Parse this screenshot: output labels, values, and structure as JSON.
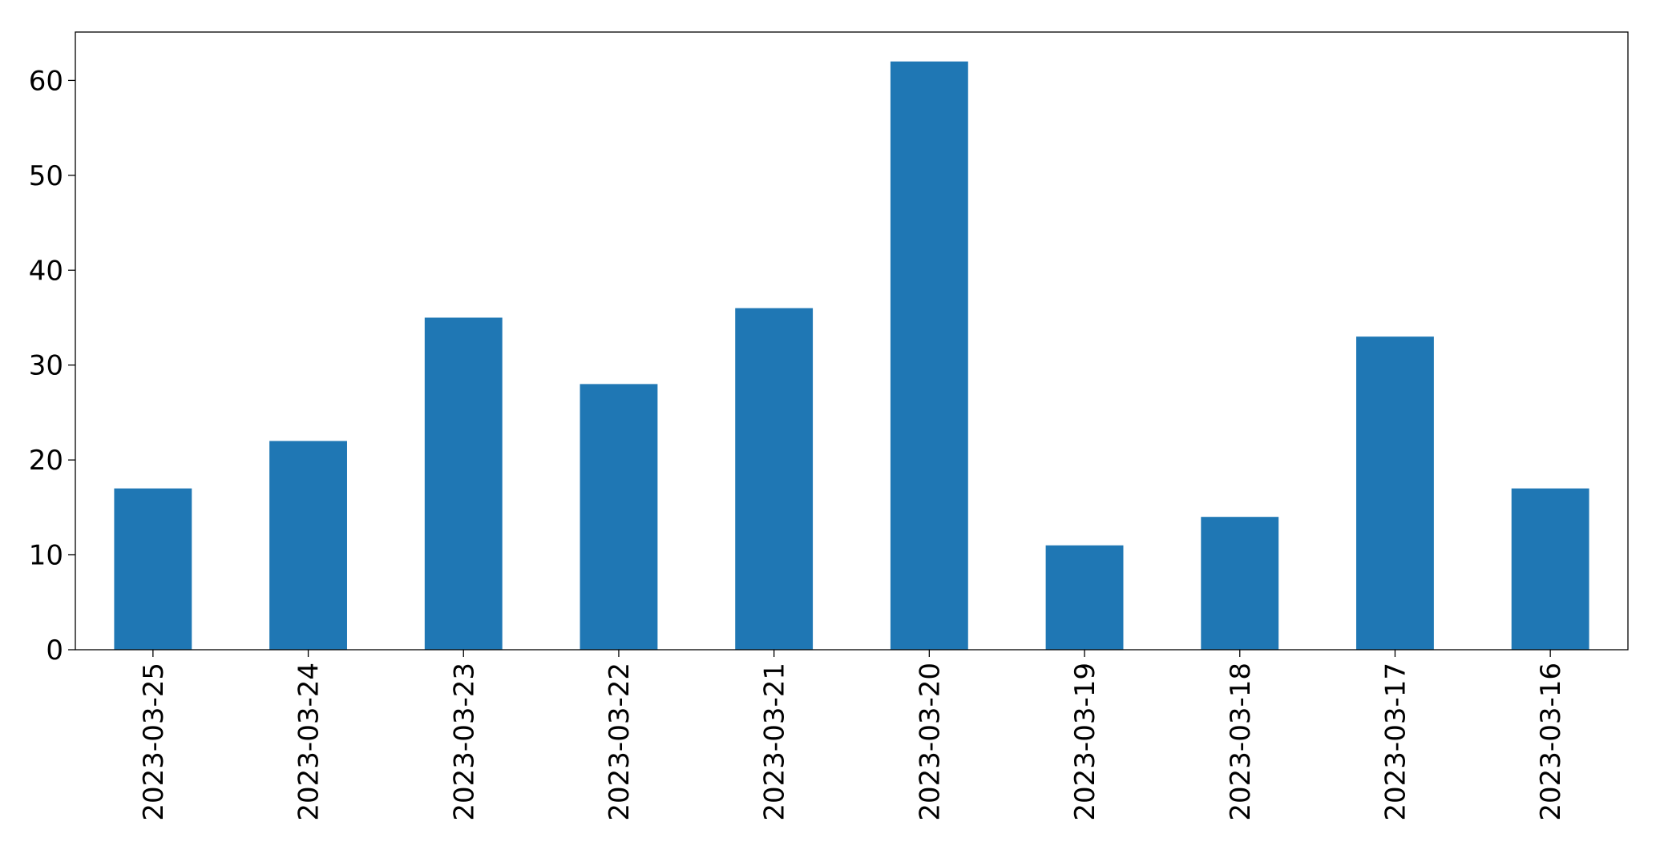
{
  "chart_data": {
    "type": "bar",
    "categories": [
      "2023-03-25",
      "2023-03-24",
      "2023-03-23",
      "2023-03-22",
      "2023-03-21",
      "2023-03-20",
      "2023-03-19",
      "2023-03-18",
      "2023-03-17",
      "2023-03-16"
    ],
    "values": [
      17,
      22,
      35,
      28,
      36,
      62,
      11,
      14,
      33,
      17
    ],
    "color": "#1f77b4",
    "ylim": [
      0,
      65.1
    ],
    "yticks": [
      0,
      10,
      20,
      30,
      40,
      50,
      60
    ],
    "grid": false
  }
}
